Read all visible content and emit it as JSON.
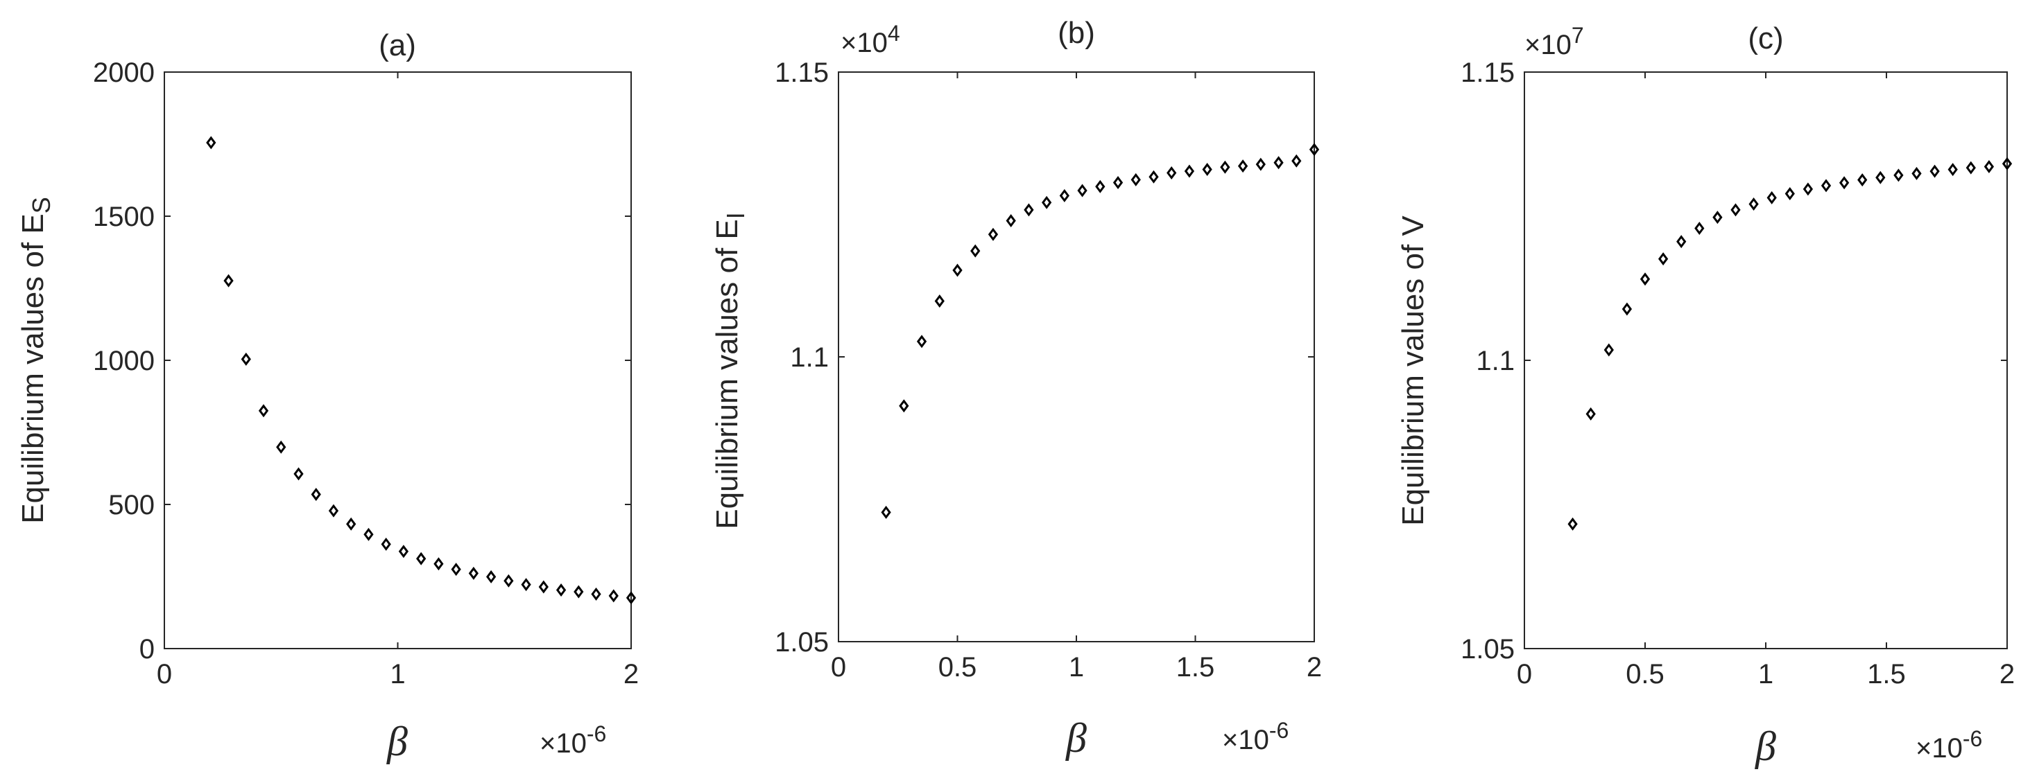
{
  "chart_data": [
    {
      "type": "scatter",
      "title": "(a)",
      "xlabel": "β",
      "x_exponent": "×10",
      "x_exponent_power": "-6",
      "ylabel": "Equilibrium values of E",
      "ylabel_subscript": "S",
      "y_exponent": "",
      "y_exponent_power": "",
      "xlim": [
        0,
        2
      ],
      "ylim": [
        0,
        2000
      ],
      "xticks": [
        0,
        1,
        2
      ],
      "xtick_labels": [
        "0",
        "1",
        "2"
      ],
      "yticks": [
        0,
        500,
        1000,
        1500,
        2000
      ],
      "ytick_labels": [
        "0",
        "500",
        "1000",
        "1500",
        "2000"
      ],
      "marker": "diamond",
      "x": [
        0.2,
        0.275,
        0.35,
        0.425,
        0.5,
        0.575,
        0.65,
        0.725,
        0.8,
        0.875,
        0.95,
        1.025,
        1.1,
        1.175,
        1.25,
        1.325,
        1.4,
        1.475,
        1.55,
        1.625,
        1.7,
        1.775,
        1.85,
        1.925,
        2.0
      ],
      "y": [
        1755,
        1276,
        1004,
        825,
        699,
        606,
        535,
        478,
        432,
        396,
        362,
        337,
        312,
        294,
        275,
        261,
        249,
        235,
        222,
        214,
        203,
        197,
        189,
        183,
        176
      ]
    },
    {
      "type": "scatter",
      "title": "(b)",
      "xlabel": "β",
      "x_exponent": "×10",
      "x_exponent_power": "-6",
      "ylabel": "Equilibrium values of E",
      "ylabel_subscript": "I",
      "y_exponent": "×10",
      "y_exponent_power": "4",
      "xlim": [
        0,
        2
      ],
      "ylim": [
        1.05,
        1.15
      ],
      "xticks": [
        0,
        0.5,
        1,
        1.5,
        2
      ],
      "xtick_labels": [
        "0",
        "0.5",
        "1",
        "1.5",
        "2"
      ],
      "yticks": [
        1.05,
        1.1,
        1.15
      ],
      "ytick_labels": [
        "1.05",
        "1.1",
        "1.15"
      ],
      "marker": "diamond",
      "x": [
        0.2,
        0.275,
        0.35,
        0.425,
        0.5,
        0.575,
        0.65,
        0.725,
        0.8,
        0.875,
        0.95,
        1.025,
        1.1,
        1.175,
        1.25,
        1.325,
        1.4,
        1.475,
        1.55,
        1.625,
        1.7,
        1.775,
        1.85,
        1.925,
        2.0
      ],
      "y": [
        1.0727,
        1.0914,
        1.1027,
        1.1098,
        1.1152,
        1.1186,
        1.1215,
        1.1239,
        1.1258,
        1.1271,
        1.1283,
        1.1292,
        1.1299,
        1.1306,
        1.1311,
        1.1316,
        1.1323,
        1.1326,
        1.1329,
        1.1333,
        1.1335,
        1.1338,
        1.1341,
        1.1344,
        1.1364
      ]
    },
    {
      "type": "scatter",
      "title": "(c)",
      "xlabel": "β",
      "x_exponent": "×10",
      "x_exponent_power": "-6",
      "ylabel": "Equilibrium values of V",
      "ylabel_subscript": "",
      "y_exponent": "×10",
      "y_exponent_power": "7",
      "xlim": [
        0,
        2
      ],
      "ylim": [
        1.05,
        1.15
      ],
      "xticks": [
        0,
        0.5,
        1,
        1.5,
        2
      ],
      "xtick_labels": [
        "0",
        "0.5",
        "1",
        "1.5",
        "2"
      ],
      "yticks": [
        1.05,
        1.1,
        1.15
      ],
      "ytick_labels": [
        "1.05",
        "1.1",
        "1.15"
      ],
      "marker": "diamond",
      "x": [
        0.2,
        0.275,
        0.35,
        0.425,
        0.5,
        0.575,
        0.65,
        0.725,
        0.8,
        0.875,
        0.95,
        1.025,
        1.1,
        1.175,
        1.25,
        1.325,
        1.4,
        1.475,
        1.55,
        1.625,
        1.7,
        1.775,
        1.85,
        1.925,
        2.0
      ],
      "y": [
        1.0716,
        1.0907,
        1.1018,
        1.1089,
        1.1141,
        1.1176,
        1.1206,
        1.1229,
        1.1248,
        1.1261,
        1.1271,
        1.1282,
        1.1289,
        1.1297,
        1.1303,
        1.1308,
        1.1313,
        1.1317,
        1.1321,
        1.1324,
        1.1328,
        1.1331,
        1.1334,
        1.1336,
        1.1341
      ]
    }
  ]
}
